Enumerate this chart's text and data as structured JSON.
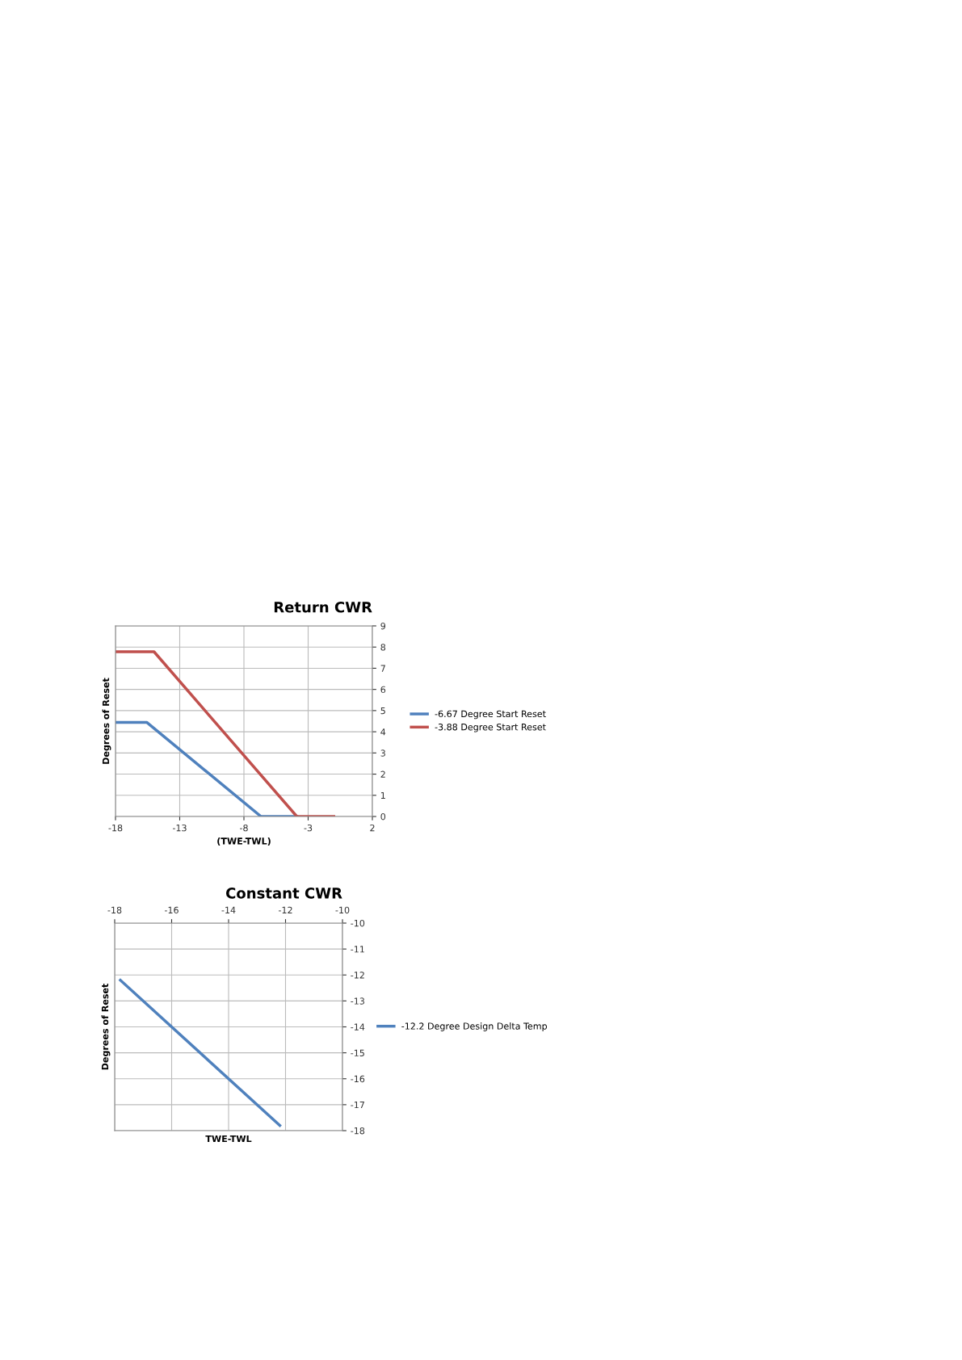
{
  "chart_data": [
    {
      "type": "line",
      "title": "Return CWR",
      "xlabel": "(TWE-TWL)",
      "ylabel": "Degrees of Reset",
      "xlim": [
        -18,
        2
      ],
      "xticks": [
        -18,
        -13,
        -8,
        -3,
        2
      ],
      "ylim": [
        0,
        9
      ],
      "yticks": [
        0,
        1,
        2,
        3,
        4,
        5,
        6,
        7,
        8,
        9
      ],
      "grid": true,
      "legend": "right",
      "marker": "none",
      "line_style": "solid",
      "series": [
        {
          "name": "-6.67 Degree Start Reset",
          "color": "#4f81bd",
          "x": [
            -18,
            -15.55,
            -6.67,
            -3.88
          ],
          "values": [
            4.44,
            4.44,
            0,
            0
          ]
        },
        {
          "name": "-3.88 Degree Start Reset",
          "color": "#c0504d",
          "x": [
            -18,
            -15,
            -3.88,
            -1
          ],
          "values": [
            7.78,
            7.78,
            0,
            0
          ]
        }
      ]
    },
    {
      "type": "line",
      "title": "Constant CWR",
      "xlabel": "TWE-TWL",
      "ylabel": "Degrees of Reset",
      "xlim": [
        -18,
        -10
      ],
      "xticks": [
        -18,
        -16,
        -14,
        -12,
        -10
      ],
      "ylim": [
        -18,
        -10
      ],
      "yticks": [
        -18,
        -17,
        -16,
        -15,
        -14,
        -13,
        -12,
        -11,
        -10
      ],
      "grid": true,
      "legend": "right",
      "marker": "none",
      "line_style": "solid",
      "series": [
        {
          "name": "-12.2 Degree Design Delta Temp",
          "color": "#4f81bd",
          "x": [
            -17.8,
            -12.2
          ],
          "values": [
            -12.2,
            -17.8
          ]
        }
      ]
    }
  ]
}
